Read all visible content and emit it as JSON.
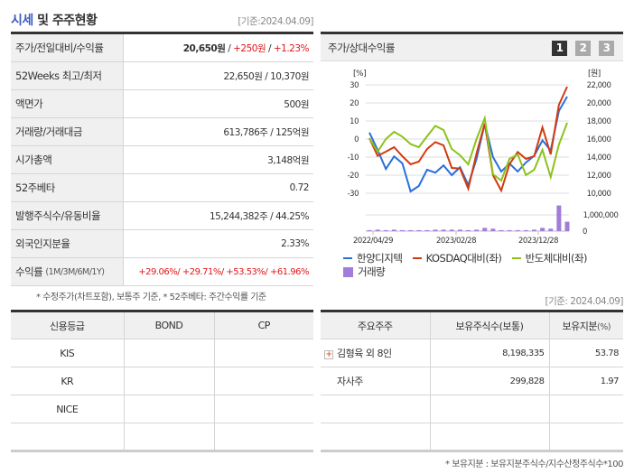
{
  "header": {
    "title_hl": "시세",
    "title_rest": " 및 주주현황",
    "as_of": "[기준:2024.04.09]"
  },
  "quote_rows": [
    {
      "label": "주가/전일대비/수익률",
      "price": "20,650원",
      "sep": " / ",
      "change": "+250원",
      "sep2": " / ",
      "pct": "+1.23%"
    },
    {
      "label": "52Weeks 최고/최저",
      "value": "22,650원 / 10,370원"
    },
    {
      "label": "액면가",
      "value": "500원"
    },
    {
      "label": "거래량/거래대금",
      "value": "613,786주 / 125억원"
    },
    {
      "label": "시가총액",
      "value": "3,148억원"
    },
    {
      "label": "52주베타",
      "value": "0.72"
    },
    {
      "label": "발행주식수/유동비율",
      "value": "15,244,382주 / 44.25%"
    },
    {
      "label": "외국인지분율",
      "value": "2.33%"
    },
    {
      "label": "수익률",
      "label_sub": "(1M/3M/6M/1Y)",
      "r1": "+29.06%",
      "r2": "+29.71%",
      "r3": "+53.53%",
      "r4": "+61.96%"
    }
  ],
  "note1": "* 수정주가(차트포함), 보통주 기준, * 52주베타: 주간수익률 기준",
  "chart_panel": {
    "title": "주가/상대수익률",
    "buttons": [
      "1",
      "2",
      "3"
    ],
    "active_button": "1"
  },
  "chart_data": {
    "type": "line",
    "left_unit": "[%]",
    "right_unit": "[원]",
    "left_ticks": [
      "30",
      "20",
      "10",
      "0",
      "-10",
      "-20",
      "-30"
    ],
    "right_ticks": [
      "22,000",
      "20,000",
      "18,000",
      "16,000",
      "14,000",
      "12,000",
      "10,000"
    ],
    "volume_ticks": [
      "1,000,000",
      "0"
    ],
    "x_labels": [
      "2022/04/29",
      "2023/02/28",
      "2023/12/28"
    ],
    "ylim": [
      -30,
      30
    ],
    "series": [
      {
        "name": "한양디지텍",
        "color": "#2a6fdb",
        "values": [
          3.6,
          -6,
          -16.6,
          -9.6,
          -13.4,
          -29,
          -26,
          -17,
          -18.6,
          -14.6,
          -20,
          -15.6,
          -25.5,
          -11,
          8.6,
          -10,
          -18,
          -13.6,
          -18,
          -13,
          -9.3,
          -0.7,
          -6.3,
          15.6,
          23.5
        ]
      },
      {
        "name": "KOSDAQ대비(좌)",
        "color": "#d23a10",
        "values": [
          0.5,
          -9.3,
          -7,
          -4.5,
          -9.5,
          -14,
          -12.5,
          -5.5,
          -1.7,
          -3.5,
          -16,
          -16.3,
          -27.5,
          -8,
          8.5,
          -20,
          -28.5,
          -14,
          -7.2,
          -11,
          -9.5,
          6.5,
          -8.5,
          19,
          29
        ]
      },
      {
        "name": "반도체대비(좌)",
        "color": "#8cc21a",
        "values": [
          0.5,
          -7,
          0,
          4,
          1.3,
          -2.8,
          -4.5,
          1.5,
          7.3,
          5,
          -5.5,
          -9,
          -14,
          0,
          11.5,
          -19.5,
          -23,
          -11,
          -8.5,
          -20,
          -17,
          -6,
          -21,
          -3,
          9
        ]
      }
    ],
    "volume": {
      "name": "거래량",
      "color": "#a27cdb",
      "values": [
        60000,
        90000,
        60000,
        90000,
        60000,
        60000,
        60000,
        60000,
        90000,
        90000,
        90000,
        90000,
        60000,
        90000,
        200000,
        150000,
        60000,
        60000,
        60000,
        60000,
        90000,
        200000,
        150000,
        1580000,
        580000
      ]
    }
  },
  "as_of2": "[기준: 2024.04.09]",
  "credit": {
    "headers": [
      "신용등급",
      "BOND",
      "CP"
    ],
    "rows": [
      [
        "KIS",
        "",
        ""
      ],
      [
        "KR",
        "",
        ""
      ],
      [
        "NICE",
        "",
        ""
      ],
      [
        "",
        "",
        ""
      ]
    ]
  },
  "holders": {
    "headers": [
      "주요주주",
      "보유주식수(보통)",
      "보유지분",
      "(%)"
    ],
    "rows": [
      [
        "김형육 외 8인",
        "8,198,335",
        "53.78"
      ],
      [
        "자사주",
        "299,828",
        "1.97"
      ],
      [
        "",
        "",
        ""
      ],
      [
        "",
        "",
        ""
      ]
    ]
  },
  "footnote": "* 보유지분 : 보유지분주식수/지수산정주식수*100"
}
